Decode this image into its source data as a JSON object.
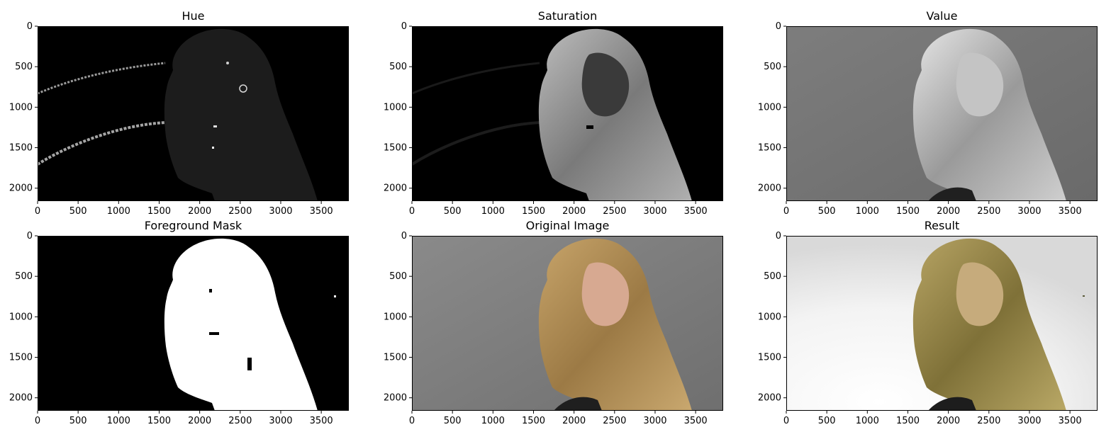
{
  "chart_data": [
    {
      "type": "image",
      "title": "Hue",
      "content": "hue-channel",
      "xlim": [
        0,
        3840
      ],
      "ylim": [
        2160,
        0
      ],
      "xticks": [
        0,
        500,
        1000,
        1500,
        2000,
        2500,
        3000,
        3500
      ],
      "yticks": [
        0,
        500,
        1000,
        1500,
        2000
      ],
      "xlabel": "",
      "ylabel": ""
    },
    {
      "type": "image",
      "title": "Saturation",
      "content": "saturation-channel",
      "xlim": [
        0,
        3840
      ],
      "ylim": [
        2160,
        0
      ],
      "xticks": [
        0,
        500,
        1000,
        1500,
        2000,
        2500,
        3000,
        3500
      ],
      "yticks": [
        0,
        500,
        1000,
        1500,
        2000
      ],
      "xlabel": "",
      "ylabel": ""
    },
    {
      "type": "image",
      "title": "Value",
      "content": "value-channel",
      "xlim": [
        0,
        3840
      ],
      "ylim": [
        2160,
        0
      ],
      "xticks": [
        0,
        500,
        1000,
        1500,
        2000,
        2500,
        3000,
        3500
      ],
      "yticks": [
        0,
        500,
        1000,
        1500,
        2000
      ],
      "xlabel": "",
      "ylabel": ""
    },
    {
      "type": "image",
      "title": "Foreground Mask",
      "content": "foreground-mask",
      "xlim": [
        0,
        3840
      ],
      "ylim": [
        2160,
        0
      ],
      "xticks": [
        0,
        500,
        1000,
        1500,
        2000,
        2500,
        3000,
        3500
      ],
      "yticks": [
        0,
        500,
        1000,
        1500,
        2000
      ],
      "xlabel": "",
      "ylabel": ""
    },
    {
      "type": "image",
      "title": "Original Image",
      "content": "original-image",
      "xlim": [
        0,
        3840
      ],
      "ylim": [
        2160,
        0
      ],
      "xticks": [
        0,
        500,
        1000,
        1500,
        2000,
        2500,
        3000,
        3500
      ],
      "yticks": [
        0,
        500,
        1000,
        1500,
        2000
      ],
      "xlabel": "",
      "ylabel": ""
    },
    {
      "type": "image",
      "title": "Result",
      "content": "result-image",
      "xlim": [
        0,
        3840
      ],
      "ylim": [
        2160,
        0
      ],
      "xticks": [
        0,
        500,
        1000,
        1500,
        2000,
        2500,
        3000,
        3500
      ],
      "yticks": [
        0,
        500,
        1000,
        1500,
        2000
      ],
      "xlabel": "",
      "ylabel": ""
    }
  ]
}
